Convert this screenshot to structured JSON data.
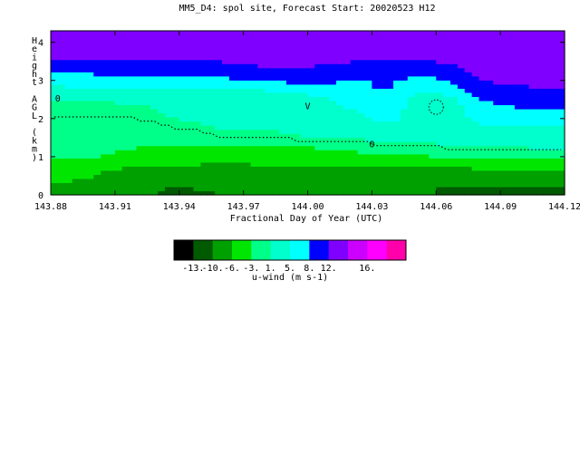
{
  "chart_data": {
    "type": "heatmap",
    "title": "MM5_D4: spol site,  Forecast Start: 20020523 H12",
    "xlabel": "Fractional Day of Year (UTC)",
    "ylabel": "Height AGL (km)",
    "xlim": [
      143.88,
      144.12
    ],
    "ylim": [
      0,
      4.3
    ],
    "x_ticks": [
      "143.88",
      "143.91",
      "143.94",
      "143.97",
      "144.00",
      "144.03",
      "144.06",
      "144.09",
      "144.12"
    ],
    "x_tick_values": [
      143.88,
      143.91,
      143.94,
      143.97,
      144.0,
      144.03,
      144.06,
      144.09,
      144.12
    ],
    "y_ticks": [
      "0",
      "1",
      "2",
      "3",
      "4"
    ],
    "y_tick_values": [
      0,
      1,
      2,
      3,
      4
    ],
    "colorbar": {
      "label": "u-wind (m s-1)",
      "tick_labels": [
        "-13.",
        "-10.",
        "-6.",
        "-3.",
        "1.",
        "5.",
        "8.",
        "12.",
        "16."
      ],
      "colors": [
        "#000000",
        "#005a00",
        "#00a000",
        "#00e600",
        "#00ff88",
        "#00ffcc",
        "#00ffff",
        "#0000ff",
        "#8000ff",
        "#cc00ff",
        "#ff00ff",
        "#ff00aa"
      ]
    },
    "x": [
      143.88,
      143.9,
      143.92,
      143.94,
      143.96,
      143.98,
      144.0,
      144.02,
      144.03,
      144.04,
      144.05,
      144.06,
      144.07,
      144.08,
      144.1,
      144.12
    ],
    "y": [
      0,
      0.25,
      0.5,
      0.75,
      1.0,
      1.25,
      1.5,
      1.75,
      2.0,
      2.25,
      2.5,
      2.75,
      3.0,
      3.25,
      3.5,
      3.75,
      4.0,
      4.25
    ],
    "z": [
      [
        -6,
        -8,
        -9,
        -11,
        -10,
        -9,
        -8,
        -8,
        -7,
        -8,
        -9,
        -10,
        -11,
        -11,
        -12,
        -13
      ],
      [
        -6,
        -7,
        -9,
        -10,
        -9,
        -9,
        -8,
        -7,
        -7,
        -8,
        -9,
        -10,
        -10,
        -10,
        -10,
        -9
      ],
      [
        -5,
        -6,
        -8,
        -8,
        -8,
        -7,
        -7,
        -7,
        -6,
        -7,
        -8,
        -8,
        -8,
        -8,
        -8,
        -7
      ],
      [
        -4,
        -5,
        -6,
        -6,
        -7,
        -6,
        -6,
        -6,
        -6,
        -6,
        -6,
        -6,
        -6,
        -5,
        -5,
        -5
      ],
      [
        -3,
        -3,
        -4,
        -4,
        -5,
        -5,
        -5,
        -5,
        -4,
        -4,
        -4,
        -3,
        -3,
        -3,
        -3,
        -3
      ],
      [
        -2,
        -2,
        -3,
        -3,
        -3,
        -3,
        -3,
        -2,
        -1,
        -1,
        -1,
        0,
        1,
        1,
        1,
        2
      ],
      [
        -1,
        -1,
        -2,
        -2,
        0,
        0,
        1,
        1,
        2,
        2,
        2,
        3,
        3,
        3,
        3,
        3
      ],
      [
        -1,
        -1,
        -1,
        0,
        1,
        1,
        2,
        3,
        4,
        4,
        3,
        3,
        4,
        4,
        4,
        4
      ],
      [
        0,
        0,
        0,
        1,
        2,
        2,
        2,
        4,
        5,
        6,
        3,
        2,
        4,
        6,
        6,
        6
      ],
      [
        0,
        0,
        0,
        2,
        2,
        3,
        3,
        5,
        6,
        7,
        3,
        1,
        4,
        7,
        8,
        8
      ],
      [
        1,
        1,
        2,
        2,
        3,
        3,
        4,
        6,
        7,
        8,
        4,
        3,
        5,
        8,
        9,
        10
      ],
      [
        4,
        5,
        5,
        4,
        4,
        5,
        6,
        7,
        8,
        8,
        6,
        5,
        7,
        10,
        11,
        12
      ],
      [
        6,
        6,
        7,
        7,
        7,
        8,
        9,
        8,
        8,
        8,
        7,
        7,
        9,
        12,
        13,
        14
      ],
      [
        8,
        9,
        9,
        9,
        10,
        11,
        11,
        10,
        10,
        10,
        9,
        10,
        11,
        13,
        14,
        15
      ],
      [
        12,
        12,
        12,
        12,
        12,
        13,
        13,
        12,
        12,
        12,
        12,
        12,
        13,
        14,
        15,
        16
      ],
      [
        13,
        13,
        13,
        13,
        13,
        13,
        14,
        13,
        13,
        13,
        13,
        13,
        14,
        14,
        15,
        16
      ],
      [
        13,
        13,
        13,
        13,
        13,
        13,
        13,
        13,
        13,
        13,
        13,
        13,
        13,
        14,
        15,
        15
      ],
      [
        13,
        13,
        13,
        13,
        13,
        13,
        13,
        13,
        13,
        13,
        13,
        13,
        13,
        14,
        15,
        15
      ]
    ],
    "zero_contour_label": "0",
    "annotations": [
      "V",
      "0"
    ],
    "grid": false
  }
}
